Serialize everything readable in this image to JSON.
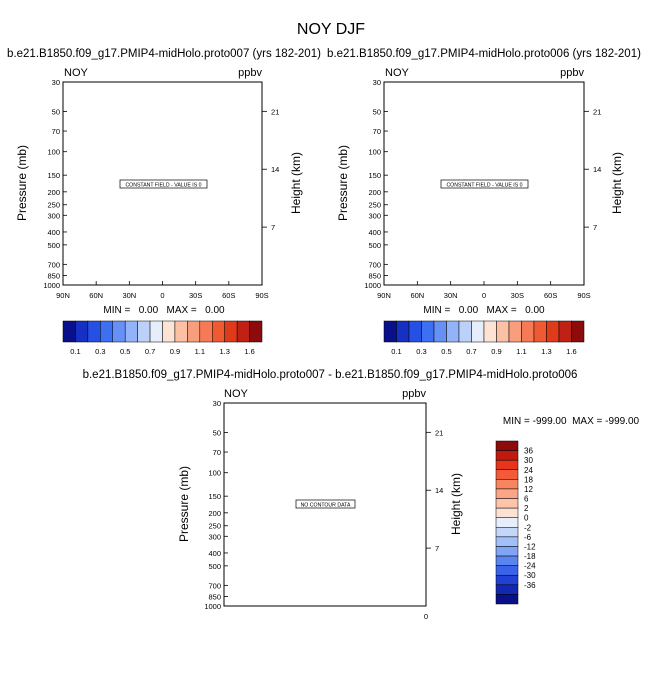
{
  "title": "NOY DJF",
  "pressure_label": "Pressure (mb)",
  "height_label": "Height (km)",
  "pressure_ticks": [
    30,
    50,
    70,
    100,
    150,
    200,
    250,
    300,
    400,
    500,
    700,
    850,
    1000
  ],
  "height_ticks": [
    21,
    14,
    7
  ],
  "lat_ticks": [
    "90N",
    "60N",
    "30N",
    "0",
    "30S",
    "60S",
    "90S"
  ],
  "colorbar": {
    "colors": [
      "#0a0f8a",
      "#1630c4",
      "#2550e6",
      "#3d6ff2",
      "#6690f5",
      "#93b3f8",
      "#bcd1fa",
      "#e6eefc",
      "#fde3d3",
      "#fcc0a4",
      "#f99e7c",
      "#f67a55",
      "#f05a32",
      "#df3a1a",
      "#c12014",
      "#8e0b0b"
    ],
    "labels": [
      "0.1",
      "0.3",
      "0.5",
      "0.7",
      "0.9",
      "1.1",
      "1.3",
      "1.6"
    ]
  },
  "diff_colorbar": {
    "colors": [
      "#8e0b0b",
      "#c01a10",
      "#e6351a",
      "#f35a3a",
      "#f9855f",
      "#fca586",
      "#fcc4aa",
      "#fde2d4",
      "#e6eefc",
      "#c4d6fa",
      "#a3bff7",
      "#7fa5f4",
      "#5a85f0",
      "#3a63ea",
      "#2040d6",
      "#1227b2",
      "#0a0f8a"
    ],
    "labels": [
      "36",
      "30",
      "24",
      "18",
      "12",
      "6",
      "2",
      "0",
      "-2",
      "-6",
      "-12",
      "-18",
      "-24",
      "-30",
      "-36"
    ]
  },
  "chart_data": [
    {
      "type": "heatmap",
      "title": "b.e21.B1850.f09_g17.PMIP4-midHolo.proto007 (yrs 182-201)",
      "left_label": "NOY",
      "right_label": "ppbv",
      "message": "CONSTANT FIELD - VALUE IS 0",
      "min_max": "MIN =   0.00   MAX =   0.00",
      "x_ticks": [
        "90N",
        "60N",
        "30N",
        "0",
        "30S",
        "60S",
        "90S"
      ],
      "xlim": [
        "90N",
        "90S"
      ],
      "ylim": [
        1000,
        30
      ],
      "y_scale": "log",
      "values": []
    },
    {
      "type": "heatmap",
      "title": "b.e21.B1850.f09_g17.PMIP4-midHolo.proto006 (yrs 182-201)",
      "left_label": "NOY",
      "right_label": "ppbv",
      "message": "CONSTANT FIELD - VALUE IS 0",
      "min_max": "MIN =   0.00   MAX =   0.00",
      "x_ticks": [
        "90N",
        "60N",
        "30N",
        "0",
        "30S",
        "60S",
        "90S"
      ],
      "xlim": [
        "90N",
        "90S"
      ],
      "ylim": [
        1000,
        30
      ],
      "y_scale": "log",
      "values": []
    },
    {
      "type": "heatmap",
      "title": "b.e21.B1850.f09_g17.PMIP4-midHolo.proto007 - b.e21.B1850.f09_g17.PMIP4-midHolo.proto006",
      "left_label": "NOY",
      "right_label": "ppbv",
      "message": "NO CONTOUR DATA",
      "min_max": "MIN = -999.00  MAX = -999.00",
      "x_ticks": [
        "0"
      ],
      "ylim": [
        1000,
        30
      ],
      "y_scale": "log",
      "values": []
    }
  ]
}
